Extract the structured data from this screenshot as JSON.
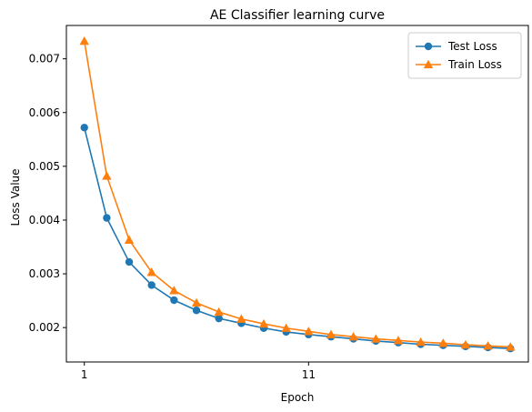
{
  "chart_data": {
    "type": "line",
    "title": "AE Classifier learning curve",
    "xlabel": "Epoch",
    "ylabel": "Loss Value",
    "x": [
      1,
      2,
      3,
      4,
      5,
      6,
      7,
      8,
      9,
      10,
      11,
      12,
      13,
      14,
      15,
      16,
      17,
      18,
      19,
      20
    ],
    "xticks": [
      1,
      11
    ],
    "xlim": [
      0.2,
      20.8
    ],
    "ylim": [
      0.00136,
      0.00762
    ],
    "yticks": [
      0.002,
      0.003,
      0.004,
      0.005,
      0.006,
      0.007
    ],
    "ytick_labels": [
      "0.002",
      "0.003",
      "0.004",
      "0.005",
      "0.006",
      "0.007"
    ],
    "grid": false,
    "legend_position": "top-right",
    "series": [
      {
        "name": "Test Loss",
        "color": "#1f77b4",
        "marker": "circle",
        "values": [
          0.00572,
          0.00404,
          0.00322,
          0.00279,
          0.00251,
          0.00232,
          0.00217,
          0.00208,
          0.00199,
          0.00192,
          0.00187,
          0.00183,
          0.00179,
          0.00175,
          0.00172,
          0.00169,
          0.00167,
          0.00165,
          0.00163,
          0.00161
        ]
      },
      {
        "name": "Train Loss",
        "color": "#ff7f0e",
        "marker": "triangle",
        "values": [
          0.00733,
          0.00482,
          0.00363,
          0.00303,
          0.00269,
          0.00246,
          0.00229,
          0.00216,
          0.00207,
          0.00199,
          0.00193,
          0.00187,
          0.00183,
          0.00179,
          0.00176,
          0.00173,
          0.00171,
          0.00168,
          0.00166,
          0.00164
        ]
      }
    ]
  }
}
